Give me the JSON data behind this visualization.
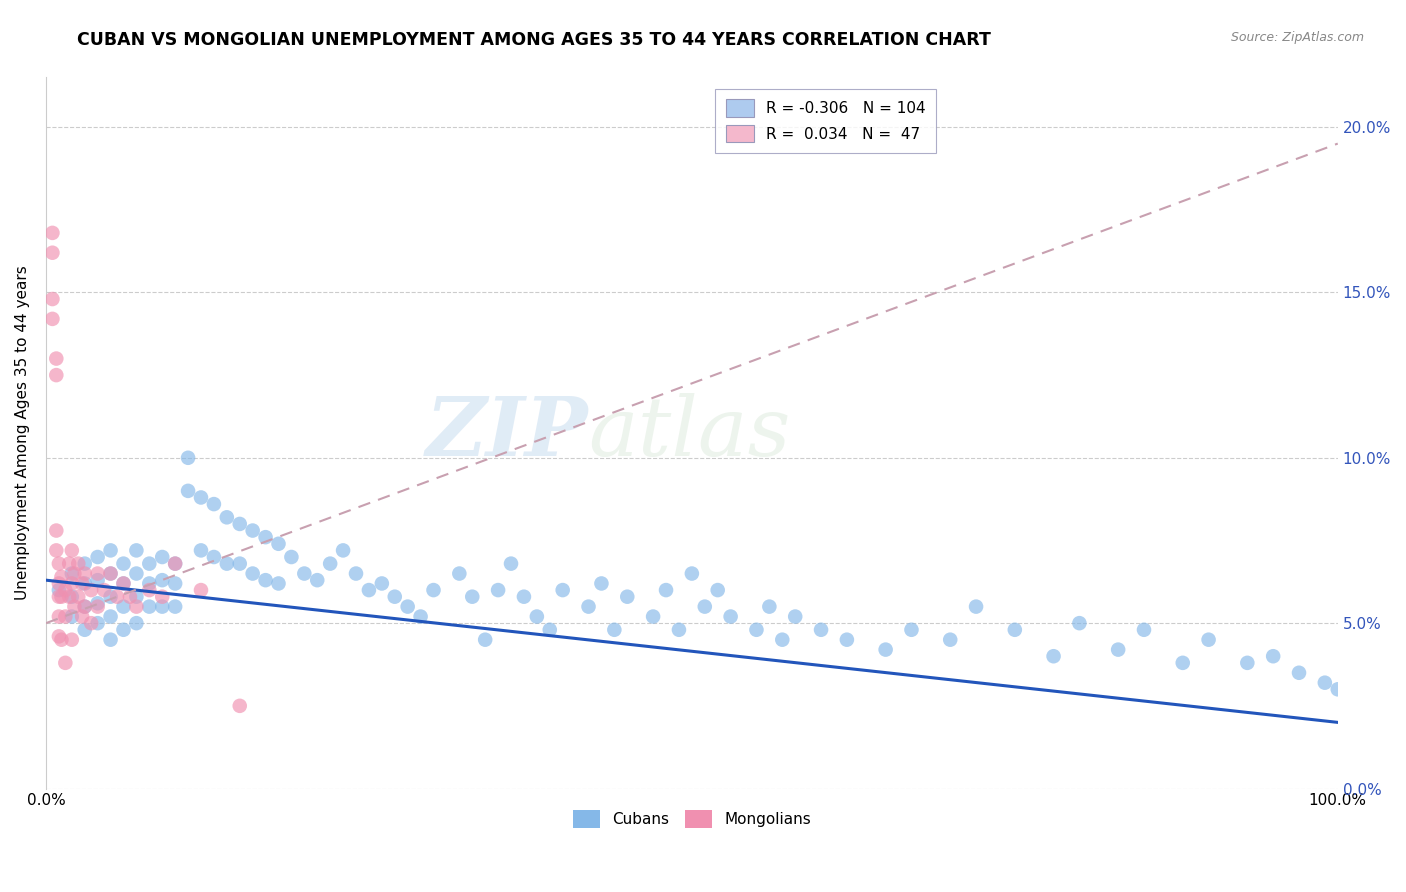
{
  "title": "CUBAN VS MONGOLIAN UNEMPLOYMENT AMONG AGES 35 TO 44 YEARS CORRELATION CHART",
  "source": "Source: ZipAtlas.com",
  "ylabel": "Unemployment Among Ages 35 to 44 years",
  "ytick_labels": [
    "0.0%",
    "5.0%",
    "10.0%",
    "15.0%",
    "20.0%"
  ],
  "ytick_values": [
    0.0,
    0.05,
    0.1,
    0.15,
    0.2
  ],
  "xlim": [
    0.0,
    1.0
  ],
  "ylim": [
    0.0,
    0.215
  ],
  "legend_entries": [
    {
      "label": "R = -0.306   N = 104",
      "color": "#aecbef"
    },
    {
      "label": "R =  0.034   N =  47",
      "color": "#f4b8cc"
    }
  ],
  "cuban_color": "#85b8e8",
  "mongolian_color": "#f090b0",
  "trend_cuban_color": "#2255bb",
  "trend_mongolian_color": "#c8a0b0",
  "watermark_zip": "ZIP",
  "watermark_atlas": "atlas",
  "title_fontsize": 12.5,
  "label_fontsize": 11,
  "tick_fontsize": 11,
  "cuban_trend_x": [
    0.0,
    1.0
  ],
  "cuban_trend_y": [
    0.063,
    0.02
  ],
  "mongolian_trend_x": [
    0.0,
    1.0
  ],
  "mongolian_trend_y": [
    0.05,
    0.195
  ],
  "cuban_x": [
    0.01,
    0.02,
    0.02,
    0.02,
    0.03,
    0.03,
    0.03,
    0.03,
    0.04,
    0.04,
    0.04,
    0.04,
    0.05,
    0.05,
    0.05,
    0.05,
    0.05,
    0.06,
    0.06,
    0.06,
    0.06,
    0.07,
    0.07,
    0.07,
    0.07,
    0.08,
    0.08,
    0.08,
    0.09,
    0.09,
    0.09,
    0.1,
    0.1,
    0.1,
    0.11,
    0.11,
    0.12,
    0.12,
    0.13,
    0.13,
    0.14,
    0.14,
    0.15,
    0.15,
    0.16,
    0.16,
    0.17,
    0.17,
    0.18,
    0.18,
    0.19,
    0.2,
    0.21,
    0.22,
    0.23,
    0.24,
    0.25,
    0.26,
    0.27,
    0.28,
    0.29,
    0.3,
    0.32,
    0.33,
    0.34,
    0.35,
    0.36,
    0.37,
    0.38,
    0.39,
    0.4,
    0.42,
    0.43,
    0.44,
    0.45,
    0.47,
    0.48,
    0.49,
    0.5,
    0.51,
    0.52,
    0.53,
    0.55,
    0.56,
    0.57,
    0.58,
    0.6,
    0.62,
    0.65,
    0.67,
    0.7,
    0.72,
    0.75,
    0.78,
    0.8,
    0.83,
    0.85,
    0.88,
    0.9,
    0.93,
    0.95,
    0.97,
    0.99,
    1.0
  ],
  "cuban_y": [
    0.06,
    0.065,
    0.058,
    0.052,
    0.068,
    0.062,
    0.055,
    0.048,
    0.07,
    0.063,
    0.056,
    0.05,
    0.072,
    0.065,
    0.058,
    0.052,
    0.045,
    0.068,
    0.062,
    0.055,
    0.048,
    0.072,
    0.065,
    0.058,
    0.05,
    0.068,
    0.062,
    0.055,
    0.07,
    0.063,
    0.055,
    0.068,
    0.062,
    0.055,
    0.1,
    0.09,
    0.088,
    0.072,
    0.086,
    0.07,
    0.082,
    0.068,
    0.08,
    0.068,
    0.078,
    0.065,
    0.076,
    0.063,
    0.074,
    0.062,
    0.07,
    0.065,
    0.063,
    0.068,
    0.072,
    0.065,
    0.06,
    0.062,
    0.058,
    0.055,
    0.052,
    0.06,
    0.065,
    0.058,
    0.045,
    0.06,
    0.068,
    0.058,
    0.052,
    0.048,
    0.06,
    0.055,
    0.062,
    0.048,
    0.058,
    0.052,
    0.06,
    0.048,
    0.065,
    0.055,
    0.06,
    0.052,
    0.048,
    0.055,
    0.045,
    0.052,
    0.048,
    0.045,
    0.042,
    0.048,
    0.045,
    0.055,
    0.048,
    0.04,
    0.05,
    0.042,
    0.048,
    0.038,
    0.045,
    0.038,
    0.04,
    0.035,
    0.032,
    0.03
  ],
  "mongolian_x": [
    0.005,
    0.005,
    0.005,
    0.005,
    0.008,
    0.008,
    0.008,
    0.008,
    0.01,
    0.01,
    0.01,
    0.01,
    0.01,
    0.012,
    0.012,
    0.012,
    0.015,
    0.015,
    0.015,
    0.018,
    0.018,
    0.02,
    0.02,
    0.02,
    0.022,
    0.022,
    0.025,
    0.025,
    0.028,
    0.028,
    0.03,
    0.03,
    0.035,
    0.035,
    0.04,
    0.04,
    0.045,
    0.05,
    0.055,
    0.06,
    0.065,
    0.07,
    0.08,
    0.09,
    0.1,
    0.12,
    0.15
  ],
  "mongolian_y": [
    0.168,
    0.162,
    0.148,
    0.142,
    0.13,
    0.125,
    0.078,
    0.072,
    0.068,
    0.062,
    0.058,
    0.052,
    0.046,
    0.064,
    0.058,
    0.045,
    0.06,
    0.052,
    0.038,
    0.068,
    0.058,
    0.072,
    0.062,
    0.045,
    0.065,
    0.055,
    0.068,
    0.058,
    0.062,
    0.052,
    0.065,
    0.055,
    0.06,
    0.05,
    0.065,
    0.055,
    0.06,
    0.065,
    0.058,
    0.062,
    0.058,
    0.055,
    0.06,
    0.058,
    0.068,
    0.06,
    0.025
  ]
}
